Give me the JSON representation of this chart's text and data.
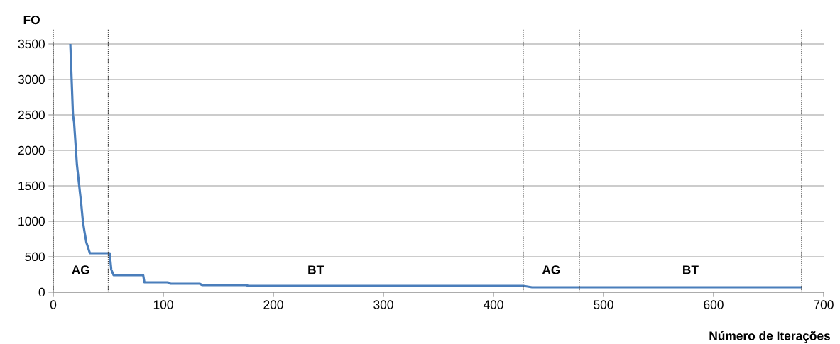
{
  "chart_data": {
    "type": "line",
    "xlabel": "Número de Iterações",
    "ylabel": "FO",
    "xlim": [
      0,
      700
    ],
    "ylim": [
      0,
      3500
    ],
    "xticks": [
      0,
      100,
      200,
      300,
      400,
      500,
      600,
      700
    ],
    "yticks": [
      0,
      500,
      1000,
      1500,
      2000,
      2500,
      3000,
      3500
    ],
    "grid": "y",
    "series": [
      {
        "color": "#4a7ebb",
        "x": [
          15.5,
          17.9,
          18.9,
          21.5,
          24.3,
          25.4,
          26.9,
          28.4,
          30.1,
          31.2,
          33.3,
          51.2,
          52.7,
          54.8,
          81.7,
          82.8,
          104,
          106.5,
          133,
          135.5,
          175,
          177.4,
          427,
          435,
          680
        ],
        "values": [
          3500,
          2500,
          2400,
          1800,
          1400,
          1250,
          1000,
          850,
          700,
          650,
          550,
          550,
          320,
          240,
          240,
          140,
          140,
          120,
          120,
          100,
          100,
          90,
          90,
          70,
          70
        ]
      }
    ],
    "ref_lines": [
      {
        "axis": "x",
        "value": 0,
        "color": "#404040",
        "line_style": "dotted"
      },
      {
        "axis": "x",
        "value": 50,
        "color": "#404040",
        "line_style": "dotted"
      },
      {
        "axis": "x",
        "value": 427,
        "color": "#404040",
        "line_style": "dotted"
      },
      {
        "axis": "x",
        "value": 478,
        "color": "#404040",
        "line_style": "dotted"
      },
      {
        "axis": "x",
        "value": 680,
        "color": "#404040",
        "line_style": "dotted"
      }
    ],
    "annotations": [
      "AG",
      "BT",
      "AG",
      "BT"
    ]
  }
}
